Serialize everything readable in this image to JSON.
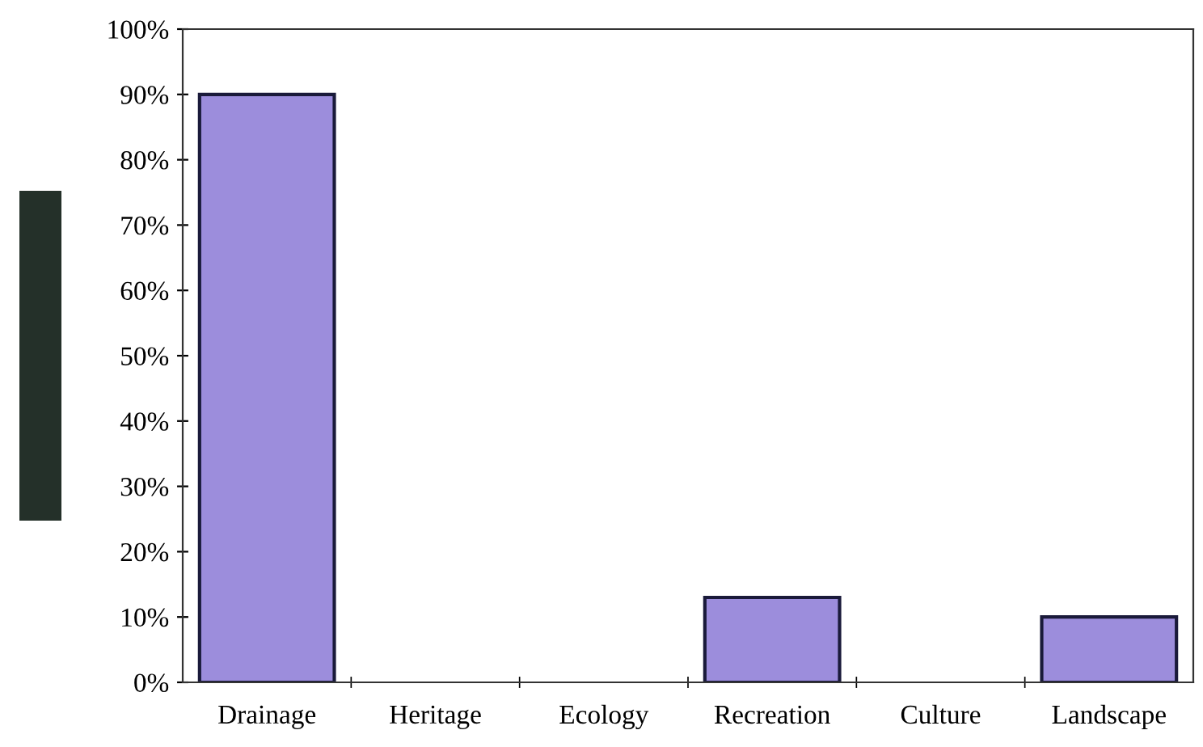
{
  "chart_data": {
    "type": "bar",
    "categories": [
      "Drainage",
      "Heritage",
      "Ecology",
      "Recreation",
      "Culture",
      "Landscape"
    ],
    "values": [
      90,
      0,
      0,
      13,
      0,
      10
    ],
    "color": "#9c8ddc",
    "ylim": [
      0,
      100
    ],
    "yticks": [
      {
        "value": 0,
        "label": "0%"
      },
      {
        "value": 10,
        "label": "10%"
      },
      {
        "value": 20,
        "label": "20%"
      },
      {
        "value": 30,
        "label": "30%"
      },
      {
        "value": 40,
        "label": "40%"
      },
      {
        "value": 50,
        "label": "50%"
      },
      {
        "value": 60,
        "label": "60%"
      },
      {
        "value": 70,
        "label": "70%"
      },
      {
        "value": 80,
        "label": "80%"
      },
      {
        "value": 90,
        "label": "90%"
      },
      {
        "value": 100,
        "label": "100%"
      }
    ],
    "grid": false,
    "legend": false
  }
}
